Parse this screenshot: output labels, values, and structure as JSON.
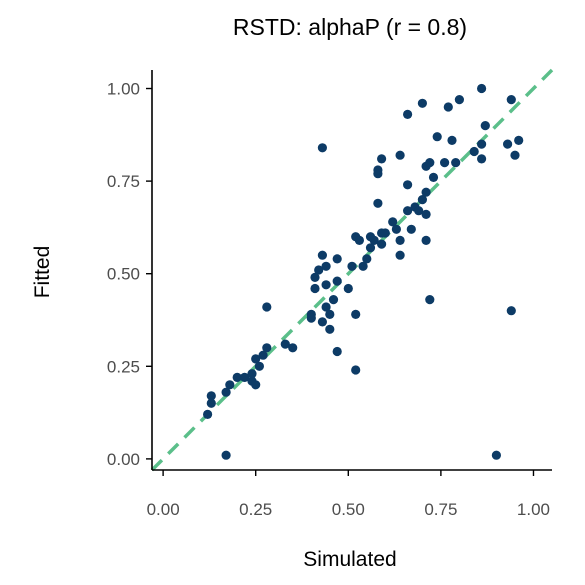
{
  "chart_data": {
    "type": "scatter",
    "title": "RSTD: alphaP (r = 0.8)",
    "xlabel": "Simulated",
    "ylabel": "Fitted",
    "xlim": [
      -0.03,
      1.05
    ],
    "ylim": [
      -0.03,
      1.05
    ],
    "xticks": [
      0,
      0.25,
      0.5,
      0.75,
      1
    ],
    "yticks": [
      0,
      0.25,
      0.5,
      0.75,
      1
    ],
    "xtick_labels": [
      "0.00",
      "0.25",
      "0.50",
      "0.75",
      "1.00"
    ],
    "ytick_labels": [
      "0.00",
      "0.25",
      "0.50",
      "0.75",
      "1.00"
    ],
    "grid": false,
    "point_color": "#0d3b66",
    "reference_line": {
      "type": "identity",
      "style": "dashed",
      "color": "#5bbf8a"
    },
    "points": [
      [
        0.12,
        0.12
      ],
      [
        0.13,
        0.15
      ],
      [
        0.13,
        0.17
      ],
      [
        0.17,
        0.18
      ],
      [
        0.18,
        0.2
      ],
      [
        0.2,
        0.22
      ],
      [
        0.17,
        0.01
      ],
      [
        0.22,
        0.22
      ],
      [
        0.24,
        0.21
      ],
      [
        0.24,
        0.23
      ],
      [
        0.25,
        0.27
      ],
      [
        0.26,
        0.25
      ],
      [
        0.27,
        0.28
      ],
      [
        0.28,
        0.3
      ],
      [
        0.28,
        0.41
      ],
      [
        0.33,
        0.31
      ],
      [
        0.35,
        0.3
      ],
      [
        0.4,
        0.39
      ],
      [
        0.41,
        0.46
      ],
      [
        0.41,
        0.49
      ],
      [
        0.42,
        0.51
      ],
      [
        0.43,
        0.37
      ],
      [
        0.44,
        0.41
      ],
      [
        0.45,
        0.39
      ],
      [
        0.44,
        0.47
      ],
      [
        0.45,
        0.35
      ],
      [
        0.43,
        0.55
      ],
      [
        0.44,
        0.52
      ],
      [
        0.46,
        0.43
      ],
      [
        0.47,
        0.54
      ],
      [
        0.47,
        0.29
      ],
      [
        0.47,
        0.48
      ],
      [
        0.5,
        0.46
      ],
      [
        0.51,
        0.52
      ],
      [
        0.52,
        0.6
      ],
      [
        0.53,
        0.59
      ],
      [
        0.52,
        0.39
      ],
      [
        0.52,
        0.24
      ],
      [
        0.54,
        0.52
      ],
      [
        0.55,
        0.54
      ],
      [
        0.56,
        0.57
      ],
      [
        0.56,
        0.6
      ],
      [
        0.57,
        0.59
      ],
      [
        0.58,
        0.69
      ],
      [
        0.58,
        0.77
      ],
      [
        0.58,
        0.78
      ],
      [
        0.59,
        0.61
      ],
      [
        0.59,
        0.58
      ],
      [
        0.6,
        0.61
      ],
      [
        0.59,
        0.81
      ],
      [
        0.62,
        0.64
      ],
      [
        0.63,
        0.62
      ],
      [
        0.64,
        0.59
      ],
      [
        0.64,
        0.55
      ],
      [
        0.64,
        0.82
      ],
      [
        0.66,
        0.67
      ],
      [
        0.66,
        0.74
      ],
      [
        0.66,
        0.93
      ],
      [
        0.67,
        0.62
      ],
      [
        0.68,
        0.68
      ],
      [
        0.69,
        0.67
      ],
      [
        0.7,
        0.7
      ],
      [
        0.7,
        0.96
      ],
      [
        0.71,
        0.66
      ],
      [
        0.71,
        0.59
      ],
      [
        0.71,
        0.79
      ],
      [
        0.71,
        0.72
      ],
      [
        0.72,
        0.8
      ],
      [
        0.72,
        0.43
      ],
      [
        0.73,
        0.76
      ],
      [
        0.74,
        0.87
      ],
      [
        0.76,
        0.8
      ],
      [
        0.77,
        0.95
      ],
      [
        0.78,
        0.86
      ],
      [
        0.79,
        0.8
      ],
      [
        0.8,
        0.97
      ],
      [
        0.84,
        0.83
      ],
      [
        0.86,
        0.81
      ],
      [
        0.86,
        0.85
      ],
      [
        0.86,
        1.0
      ],
      [
        0.87,
        0.9
      ],
      [
        0.9,
        0.01
      ],
      [
        0.93,
        0.85
      ],
      [
        0.94,
        0.4
      ],
      [
        0.94,
        0.97
      ],
      [
        0.95,
        0.82
      ],
      [
        0.96,
        0.86
      ],
      [
        0.43,
        0.84
      ],
      [
        0.25,
        0.2
      ],
      [
        0.4,
        0.38
      ]
    ]
  }
}
